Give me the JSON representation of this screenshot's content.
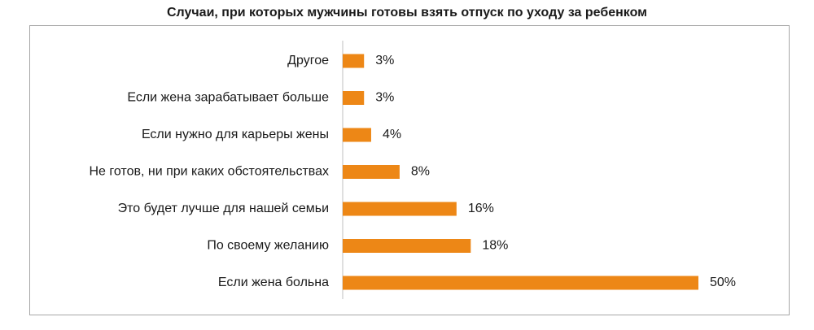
{
  "chart_data": {
    "type": "bar",
    "orientation": "horizontal",
    "title": "Случаи, при которых мужчины готовы взять отпуск по уходу за ребенком",
    "categories": [
      "Другое",
      "Если жена зарабатывает больше",
      "Если нужно для карьеры жены",
      "Не готов, ни при каких обстоятельствах",
      "Это будет лучше для нашей семьи",
      "По своему желанию",
      "Если жена больна"
    ],
    "values": [
      3,
      3,
      4,
      8,
      16,
      18,
      50
    ],
    "value_labels": [
      "3%",
      "3%",
      "4%",
      "8%",
      "16%",
      "18%",
      "50%"
    ],
    "xlim": [
      0,
      50
    ],
    "bar_color": "#ED8716",
    "grid": false,
    "legend": "none"
  }
}
